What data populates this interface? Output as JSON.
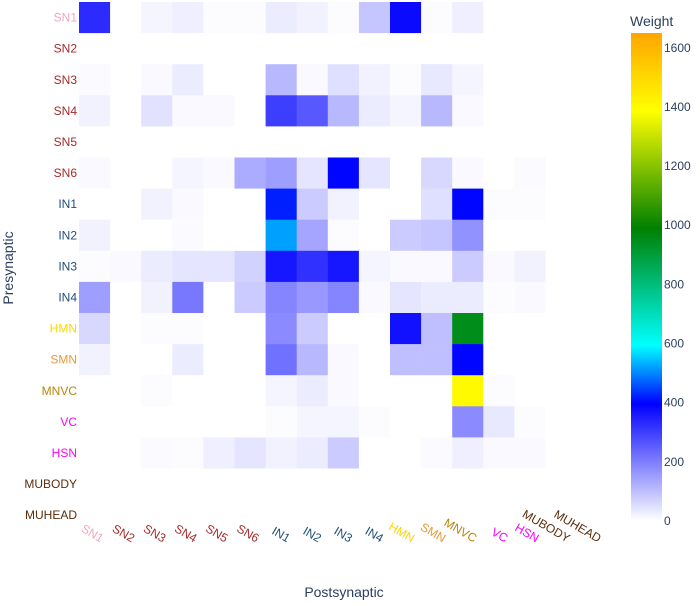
{
  "chart_data": {
    "type": "heatmap",
    "xlabel": "Postsynaptic",
    "ylabel": "Presynaptic",
    "colorbar": {
      "title": "Weight",
      "ticks": [
        0,
        200,
        400,
        600,
        800,
        1000,
        1200,
        1400,
        1600
      ],
      "range": [
        0,
        1650
      ],
      "colorscale": [
        [
          0.0,
          "#ffffff"
        ],
        [
          0.24,
          "#0000ff"
        ],
        [
          0.36,
          "#00ffff"
        ],
        [
          0.6,
          "#008000"
        ],
        [
          0.84,
          "#ffff00"
        ],
        [
          1.0,
          "#ffa500"
        ]
      ]
    },
    "x_categories": [
      {
        "label": "SN1",
        "color": "#f4a6b8"
      },
      {
        "label": "SN2",
        "color": "#a52a2a"
      },
      {
        "label": "SN3",
        "color": "#a52a2a"
      },
      {
        "label": "SN4",
        "color": "#a52a2a"
      },
      {
        "label": "SN5",
        "color": "#a52a2a"
      },
      {
        "label": "SN6",
        "color": "#a52a2a"
      },
      {
        "label": "IN1",
        "color": "#1f4e79"
      },
      {
        "label": "IN2",
        "color": "#1f4e79"
      },
      {
        "label": "IN3",
        "color": "#1f4e79"
      },
      {
        "label": "IN4",
        "color": "#1f4e79"
      },
      {
        "label": "HMN",
        "color": "#ffd700"
      },
      {
        "label": "SMN",
        "color": "#e69a3c"
      },
      {
        "label": "MNVC",
        "color": "#b8860b"
      },
      {
        "label": "VC",
        "color": "#ff00ff"
      },
      {
        "label": "HSN",
        "color": "#ff00ff"
      },
      {
        "label": "MUBODY",
        "color": "#5a2d0c"
      },
      {
        "label": "MUHEAD",
        "color": "#5a2d0c"
      }
    ],
    "y_categories": [
      {
        "label": "SN1",
        "color": "#f4a6b8"
      },
      {
        "label": "SN2",
        "color": "#a52a2a"
      },
      {
        "label": "SN3",
        "color": "#a52a2a"
      },
      {
        "label": "SN4",
        "color": "#a52a2a"
      },
      {
        "label": "SN5",
        "color": "#a52a2a"
      },
      {
        "label": "SN6",
        "color": "#a52a2a"
      },
      {
        "label": "IN1",
        "color": "#1f4e79"
      },
      {
        "label": "IN2",
        "color": "#1f4e79"
      },
      {
        "label": "IN3",
        "color": "#1f4e79"
      },
      {
        "label": "IN4",
        "color": "#1f4e79"
      },
      {
        "label": "HMN",
        "color": "#ffd700"
      },
      {
        "label": "SMN",
        "color": "#e69a3c"
      },
      {
        "label": "MNVC",
        "color": "#b8860b"
      },
      {
        "label": "VC",
        "color": "#ff00ff"
      },
      {
        "label": "HSN",
        "color": "#ff00ff"
      },
      {
        "label": "MUBODY",
        "color": "#5a2d0c"
      },
      {
        "label": "MUHEAD",
        "color": "#5a2d0c"
      }
    ],
    "z": [
      [
        330,
        0,
        15,
        25,
        5,
        5,
        30,
        20,
        5,
        90,
        380,
        5,
        25,
        0,
        0,
        0,
        0
      ],
      [
        0,
        0,
        0,
        0,
        0,
        0,
        0,
        0,
        0,
        0,
        0,
        0,
        0,
        0,
        0,
        0,
        0
      ],
      [
        8,
        0,
        10,
        30,
        0,
        0,
        110,
        10,
        50,
        20,
        5,
        35,
        15,
        0,
        0,
        0,
        0
      ],
      [
        20,
        0,
        45,
        10,
        10,
        0,
        300,
        260,
        110,
        30,
        15,
        110,
        10,
        0,
        0,
        0,
        0
      ],
      [
        0,
        0,
        0,
        0,
        0,
        0,
        0,
        0,
        0,
        0,
        0,
        0,
        0,
        0,
        0,
        0,
        0
      ],
      [
        10,
        0,
        0,
        15,
        10,
        130,
        150,
        40,
        400,
        40,
        0,
        60,
        10,
        0,
        8,
        0,
        0
      ],
      [
        0,
        0,
        20,
        10,
        0,
        0,
        420,
        80,
        20,
        0,
        0,
        50,
        400,
        5,
        5,
        0,
        0
      ],
      [
        20,
        0,
        0,
        8,
        0,
        0,
        520,
        140,
        5,
        0,
        80,
        90,
        170,
        0,
        0,
        0,
        0
      ],
      [
        5,
        10,
        30,
        40,
        40,
        70,
        360,
        320,
        360,
        15,
        10,
        10,
        80,
        10,
        20,
        0,
        0
      ],
      [
        150,
        0,
        20,
        210,
        0,
        80,
        190,
        160,
        190,
        10,
        40,
        30,
        30,
        5,
        10,
        0,
        0
      ],
      [
        60,
        0,
        5,
        5,
        0,
        0,
        180,
        80,
        0,
        0,
        370,
        100,
        950,
        0,
        0,
        0,
        0
      ],
      [
        20,
        0,
        0,
        30,
        0,
        0,
        220,
        110,
        10,
        0,
        100,
        100,
        400,
        0,
        0,
        0,
        0
      ],
      [
        0,
        0,
        5,
        0,
        0,
        0,
        15,
        30,
        10,
        0,
        0,
        0,
        1400,
        5,
        0,
        0,
        0
      ],
      [
        0,
        0,
        0,
        0,
        0,
        0,
        5,
        15,
        15,
        5,
        0,
        0,
        180,
        35,
        5,
        0,
        0
      ],
      [
        0,
        0,
        8,
        5,
        25,
        40,
        20,
        30,
        80,
        0,
        0,
        8,
        25,
        10,
        10,
        0,
        0
      ],
      [
        0,
        0,
        0,
        0,
        0,
        0,
        0,
        0,
        0,
        0,
        0,
        0,
        0,
        0,
        0,
        0,
        0
      ],
      [
        0,
        0,
        0,
        0,
        0,
        0,
        0,
        0,
        0,
        0,
        0,
        0,
        0,
        0,
        0,
        0,
        0
      ]
    ],
    "grid": false,
    "legend": "colorbar-right"
  }
}
